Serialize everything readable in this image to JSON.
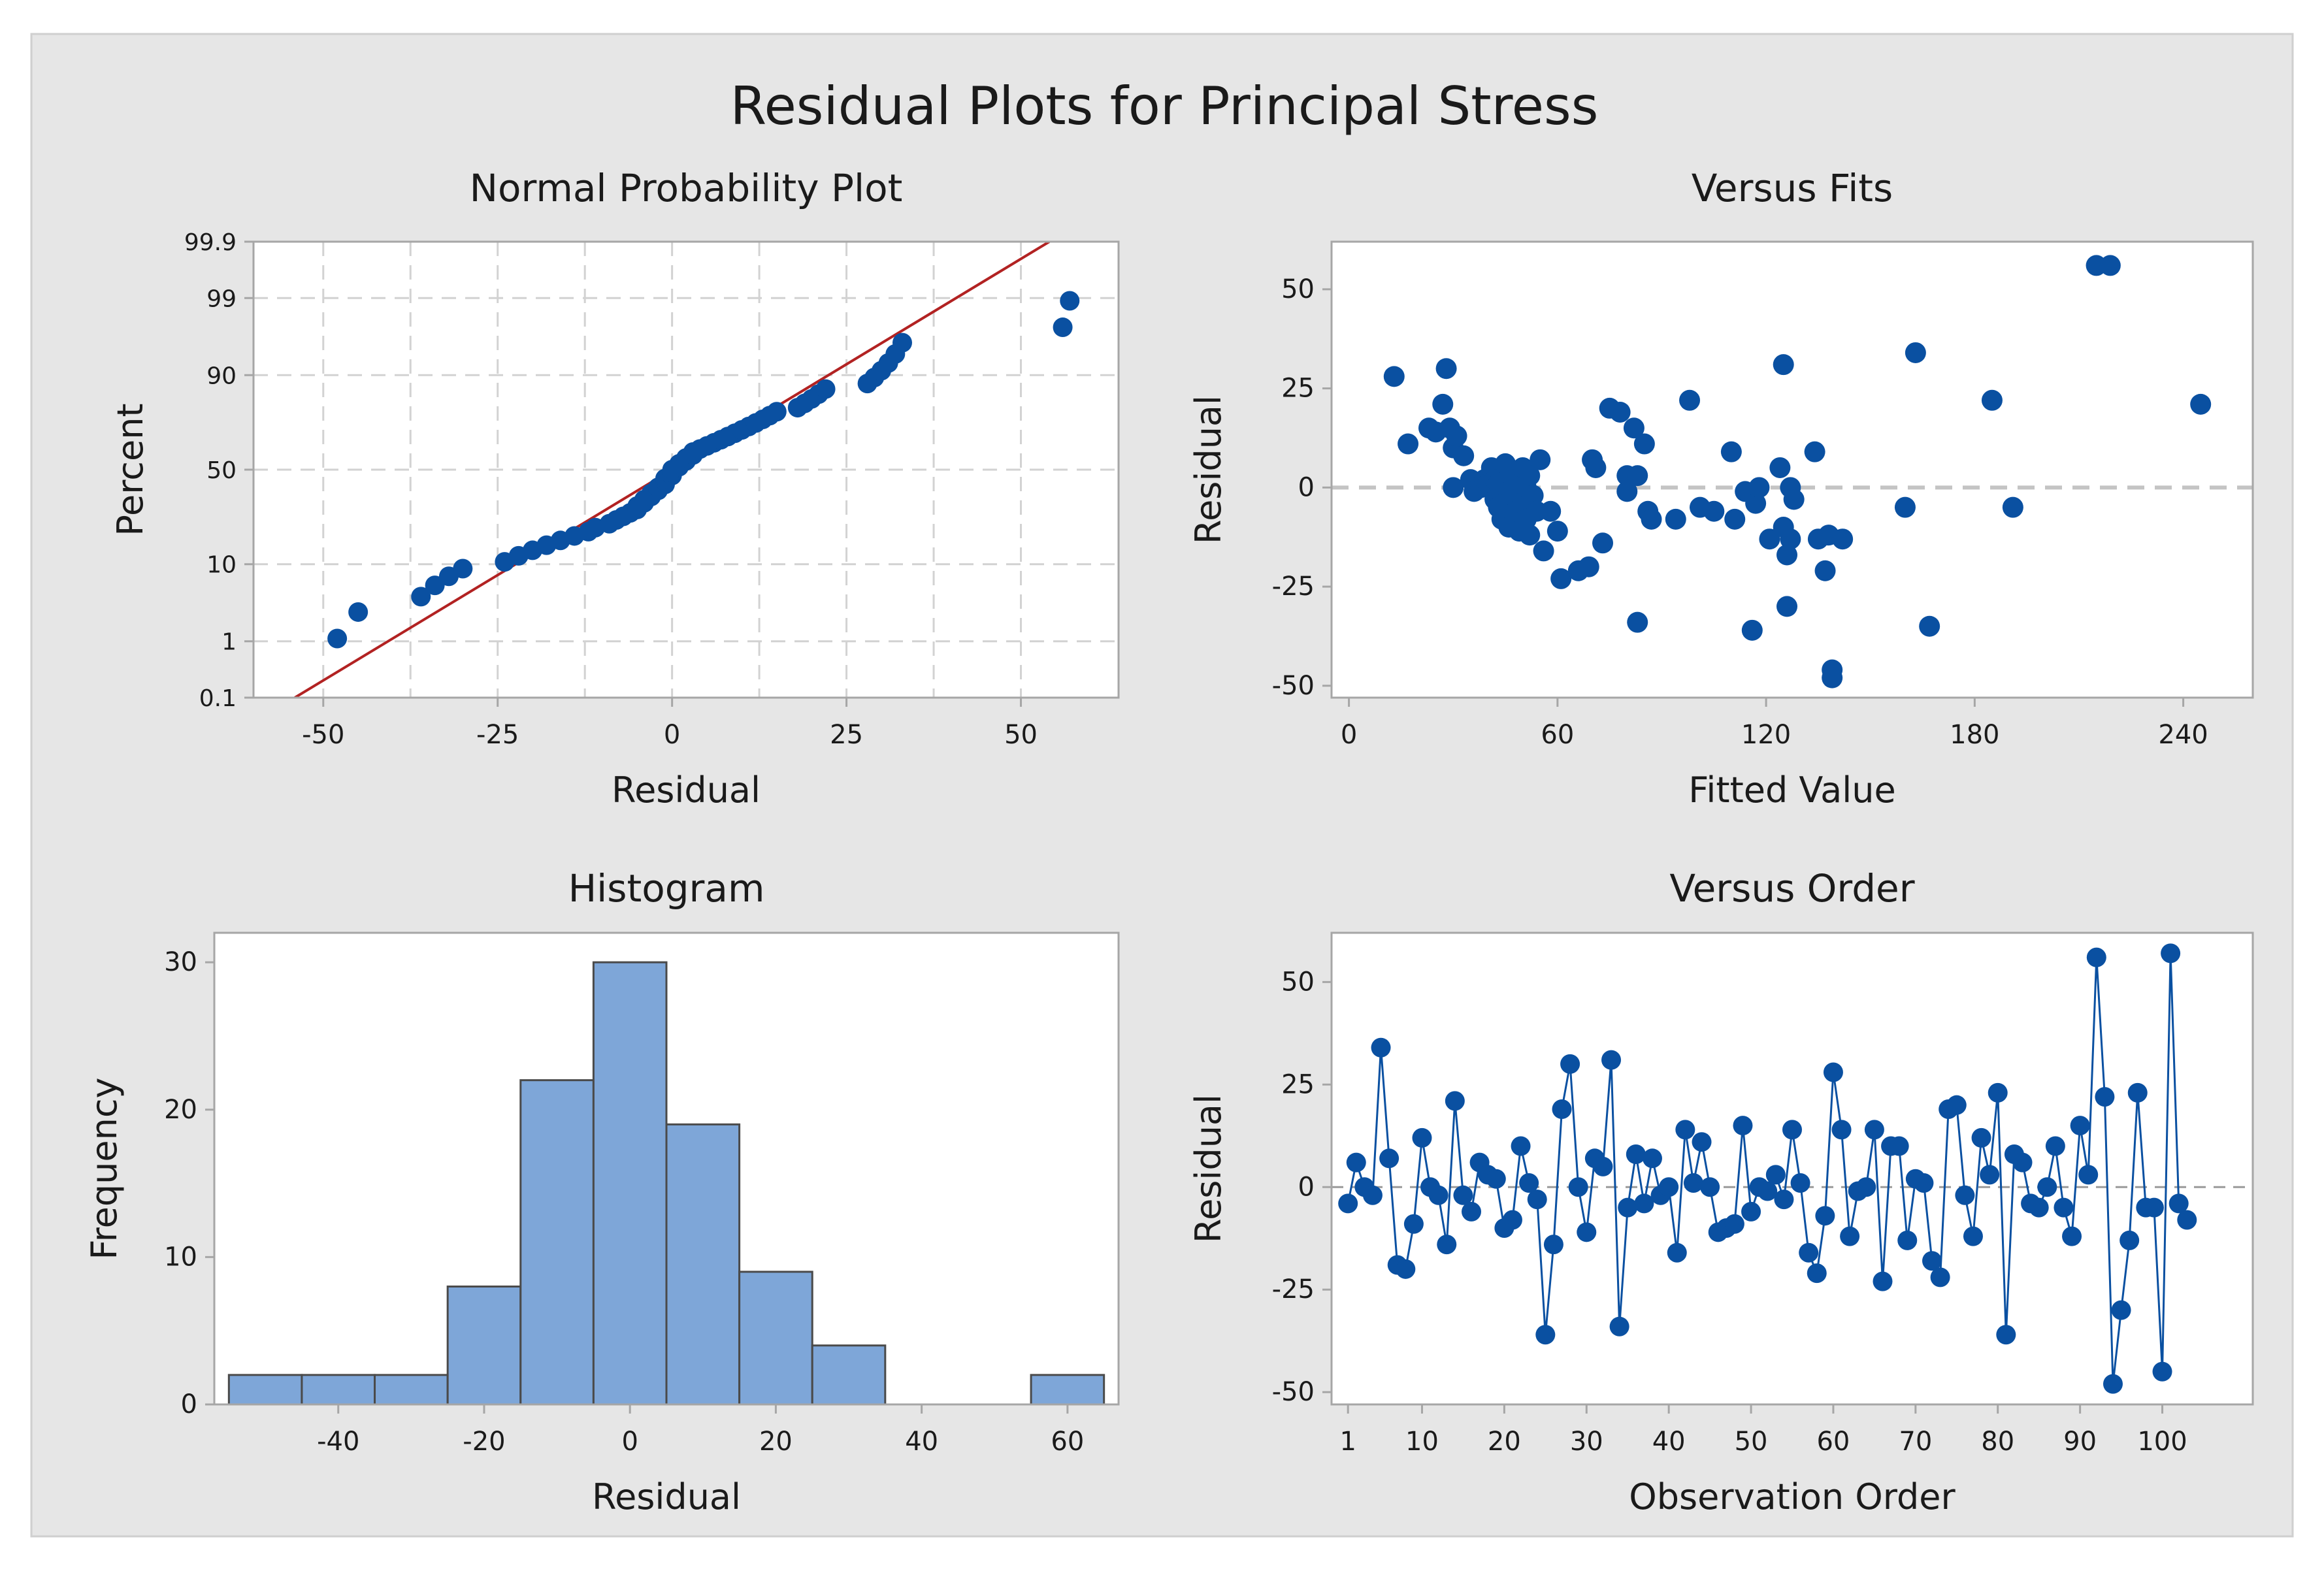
{
  "figure": {
    "title": "Residual Plots for Principal Stress",
    "colors": {
      "page_bg": "#ffffff",
      "panel_bg": "#e6e6e6",
      "plot_bg": "#ffffff",
      "point": "#0a50a1",
      "fit_line": "#b22222",
      "bar_fill": "#7ea6d8",
      "bar_edge": "#4a4a4a",
      "grid": "#d2d2d2",
      "axis": "#a6a6a6",
      "text": "#1a1a1a"
    }
  },
  "chart_data": [
    {
      "type": "scatter",
      "name": "normal-probability-plot",
      "title": "Normal Probability Plot",
      "xlabel": "Residual",
      "ylabel": "Percent",
      "xlim": [
        -60,
        64
      ],
      "xticks": [
        -50,
        -25,
        0,
        25,
        50
      ],
      "xtick_labels": [
        "-50",
        "-25",
        "0",
        "25",
        "50"
      ],
      "yscale": "normal-probability",
      "ylim": [
        0.1,
        99.9
      ],
      "yticks": [
        0.1,
        1,
        10,
        50,
        90,
        99,
        99.9
      ],
      "ytick_labels": [
        "0.1",
        "1",
        "10",
        "50",
        "90",
        "99",
        "99.9"
      ],
      "grid": true,
      "fit_line": {
        "mean": 0,
        "sd": 17.5
      },
      "residuals": [
        -48,
        -45,
        -36,
        -34,
        -32,
        -30,
        -24,
        -22,
        -20,
        -18,
        -16,
        -14,
        -12,
        -11,
        -9,
        -8,
        -7,
        -6,
        -5,
        -5,
        -4,
        -4,
        -3,
        -3,
        -2,
        -2,
        -1,
        -1,
        -1,
        0,
        0,
        0,
        1,
        1,
        2,
        2,
        3,
        3,
        4,
        5,
        6,
        7,
        8,
        9,
        10,
        11,
        12,
        13,
        14,
        15,
        18,
        19,
        20,
        21,
        22,
        28,
        29,
        30,
        31,
        32,
        33,
        56,
        57
      ]
    },
    {
      "type": "scatter",
      "name": "versus-fits",
      "title": "Versus Fits",
      "xlabel": "Fitted Value",
      "ylabel": "Residual",
      "xlim": [
        -5,
        260
      ],
      "xticks": [
        0,
        60,
        120,
        180,
        240
      ],
      "xtick_labels": [
        "0",
        "60",
        "120",
        "180",
        "240"
      ],
      "ylim": [
        -53,
        62
      ],
      "yticks": [
        -50,
        -25,
        0,
        25,
        50
      ],
      "ytick_labels": [
        "-50",
        "-25",
        "0",
        "25",
        "50"
      ],
      "reference_line": 0,
      "points": [
        [
          13,
          28
        ],
        [
          17,
          11
        ],
        [
          23,
          15
        ],
        [
          25,
          14
        ],
        [
          27,
          21
        ],
        [
          28,
          30
        ],
        [
          29,
          15
        ],
        [
          30,
          10
        ],
        [
          31,
          13
        ],
        [
          30,
          0
        ],
        [
          33,
          8
        ],
        [
          35,
          2
        ],
        [
          36,
          -1
        ],
        [
          38,
          0
        ],
        [
          39,
          2
        ],
        [
          40,
          1
        ],
        [
          41,
          5
        ],
        [
          42,
          -3
        ],
        [
          42,
          2
        ],
        [
          43,
          -5
        ],
        [
          43,
          1
        ],
        [
          44,
          -8
        ],
        [
          45,
          3
        ],
        [
          45,
          6
        ],
        [
          46,
          -1
        ],
        [
          46,
          -10
        ],
        [
          47,
          -2
        ],
        [
          48,
          4
        ],
        [
          48,
          -6
        ],
        [
          49,
          1
        ],
        [
          49,
          -11
        ],
        [
          50,
          -4
        ],
        [
          50,
          5
        ],
        [
          51,
          0
        ],
        [
          51,
          -8
        ],
        [
          52,
          3
        ],
        [
          52,
          -12
        ],
        [
          53,
          -2
        ],
        [
          54,
          -6
        ],
        [
          55,
          7
        ],
        [
          56,
          -16
        ],
        [
          58,
          -6
        ],
        [
          60,
          -11
        ],
        [
          61,
          -23
        ],
        [
          66,
          -21
        ],
        [
          69,
          -20
        ],
        [
          70,
          7
        ],
        [
          71,
          5
        ],
        [
          73,
          -14
        ],
        [
          75,
          20
        ],
        [
          78,
          19
        ],
        [
          80,
          3
        ],
        [
          80,
          -1
        ],
        [
          82,
          15
        ],
        [
          83,
          -34
        ],
        [
          83,
          3
        ],
        [
          85,
          11
        ],
        [
          86,
          -6
        ],
        [
          87,
          -8
        ],
        [
          94,
          -8
        ],
        [
          98,
          22
        ],
        [
          101,
          -5
        ],
        [
          105,
          -6
        ],
        [
          110,
          9
        ],
        [
          111,
          -8
        ],
        [
          114,
          -1
        ],
        [
          116,
          -36
        ],
        [
          117,
          -4
        ],
        [
          118,
          0
        ],
        [
          121,
          -13
        ],
        [
          124,
          5
        ],
        [
          125,
          31
        ],
        [
          125,
          -10
        ],
        [
          126,
          -30
        ],
        [
          126,
          -17
        ],
        [
          127,
          -13
        ],
        [
          127,
          0
        ],
        [
          128,
          -3
        ],
        [
          134,
          9
        ],
        [
          135,
          -13
        ],
        [
          137,
          -21
        ],
        [
          138,
          -12
        ],
        [
          139,
          -46
        ],
        [
          139,
          -48
        ],
        [
          142,
          -13
        ],
        [
          160,
          -5
        ],
        [
          163,
          34
        ],
        [
          167,
          -35
        ],
        [
          185,
          22
        ],
        [
          191,
          -5
        ],
        [
          215,
          56
        ],
        [
          219,
          56
        ],
        [
          245,
          21
        ]
      ]
    },
    {
      "type": "bar",
      "name": "histogram",
      "title": "Histogram",
      "xlabel": "Residual",
      "ylabel": "Frequency",
      "xlim": [
        -57,
        67
      ],
      "xticks": [
        -40,
        -20,
        0,
        20,
        40,
        60
      ],
      "xtick_labels": [
        "-40",
        "-20",
        "0",
        "20",
        "40",
        "60"
      ],
      "ylim": [
        0,
        32
      ],
      "yticks": [
        0,
        10,
        20,
        30
      ],
      "ytick_labels": [
        "0",
        "10",
        "20",
        "30"
      ],
      "bin_width": 10,
      "bin_centers": [
        -50,
        -40,
        -30,
        -20,
        -10,
        0,
        10,
        20,
        30,
        40,
        50,
        60
      ],
      "values": [
        2,
        2,
        2,
        8,
        22,
        30,
        19,
        9,
        4,
        0,
        0,
        2
      ]
    },
    {
      "type": "line",
      "name": "versus-order",
      "title": "Versus Order",
      "xlabel": "Observation Order",
      "ylabel": "Residual",
      "xlim": [
        -1,
        111
      ],
      "xticks": [
        1,
        10,
        20,
        30,
        40,
        50,
        60,
        70,
        80,
        90,
        100
      ],
      "xtick_labels": [
        "1",
        "10",
        "20",
        "30",
        "40",
        "50",
        "60",
        "70",
        "80",
        "90",
        "100"
      ],
      "ylim": [
        -53,
        62
      ],
      "yticks": [
        -50,
        -25,
        0,
        25,
        50
      ],
      "ytick_labels": [
        "-50",
        "-25",
        "0",
        "25",
        "50"
      ],
      "reference_line": 0,
      "values": [
        -4,
        6,
        0,
        -2,
        34,
        7,
        -19,
        -20,
        -9,
        12,
        0,
        -2,
        -14,
        21,
        -2,
        -6,
        6,
        3,
        2,
        -10,
        -8,
        10,
        1,
        -3,
        -36,
        -14,
        19,
        30,
        0,
        -11,
        7,
        5,
        31,
        -34,
        -5,
        8,
        -4,
        7,
        -2,
        0,
        -16,
        14,
        1,
        11,
        0,
        -11,
        -10,
        -9,
        15,
        -6,
        0,
        -1,
        3,
        -3,
        14,
        1,
        -16,
        -21,
        -7,
        28,
        14,
        -12,
        -1,
        0,
        14,
        -23,
        10,
        10,
        -13,
        2,
        1,
        -18,
        -22,
        19,
        20,
        -2,
        -12,
        12,
        3,
        23,
        -36,
        8,
        6,
        -4,
        -5,
        0,
        10,
        -5,
        -12,
        15,
        3,
        56,
        22,
        -48,
        -30,
        -13,
        23,
        -5,
        -5,
        -45,
        57,
        -4,
        -8
      ]
    }
  ]
}
